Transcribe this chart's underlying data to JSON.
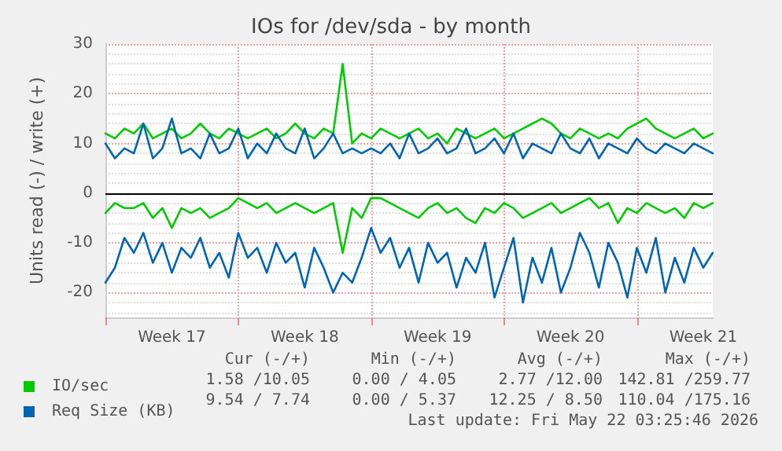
{
  "chart_data": {
    "type": "line",
    "title": "IOs for /dev/sda - by month",
    "ylabel": "Units read (-) / write (+)",
    "categories": [
      null,
      null,
      null,
      null,
      null,
      null,
      null,
      "Week 17",
      null,
      null,
      null,
      null,
      null,
      null,
      null,
      null,
      null,
      null,
      null,
      null,
      null,
      "Week 18",
      null,
      null,
      null,
      null,
      null,
      null,
      null,
      null,
      null,
      null,
      null,
      null,
      null,
      "Week 19",
      null,
      null,
      null,
      null,
      null,
      null,
      null,
      null,
      null,
      null,
      null,
      null,
      null,
      "Week 20",
      null,
      null,
      null,
      null,
      null,
      null,
      null,
      null,
      null,
      null,
      null,
      null,
      null,
      "Week 21",
      null
    ],
    "series": [
      {
        "name": "IO/sec",
        "color": "#00cc00",
        "values": [
          12,
          11,
          13,
          12,
          14,
          11,
          12,
          13,
          11,
          12,
          14,
          12,
          11,
          13,
          12,
          11,
          12,
          13,
          11,
          12,
          14,
          12,
          11,
          13,
          12,
          26,
          10,
          12,
          11,
          13,
          12,
          11,
          12,
          13,
          11,
          12,
          10,
          13,
          12,
          11,
          12,
          13,
          11,
          12,
          13,
          14,
          15,
          14,
          12,
          11,
          13,
          12,
          11,
          12,
          11,
          13,
          14,
          15,
          13,
          12,
          11,
          12,
          13,
          11,
          12
        ]
      },
      {
        "color": "#00cc00",
        "values": [
          -4,
          -2,
          -3,
          -3,
          -2,
          -5,
          -3,
          -7,
          -3,
          -4,
          -3,
          -5,
          -4,
          -3,
          -1,
          -2,
          -3,
          -2,
          -4,
          -3,
          -2,
          -3,
          -4,
          -3,
          -2,
          -12,
          -3,
          -5,
          -1,
          -1,
          -2,
          -3,
          -4,
          -5,
          -3,
          -2,
          -4,
          -3,
          -5,
          -6,
          -3,
          -4,
          -2,
          -3,
          -5,
          -4,
          -3,
          -2,
          -4,
          -3,
          -2,
          -1,
          -3,
          -2,
          -6,
          -3,
          -4,
          -2,
          -3,
          -4,
          -3,
          -5,
          -2,
          -3,
          -2
        ]
      },
      {
        "name": "Req Size (KB)",
        "color": "#0066b3",
        "values": [
          10,
          7,
          9,
          8,
          14,
          7,
          9,
          15,
          8,
          9,
          7,
          12,
          8,
          9,
          13,
          7,
          10,
          8,
          12,
          9,
          8,
          13,
          7,
          9,
          12,
          8,
          9,
          8,
          9,
          8,
          10,
          7,
          12,
          8,
          9,
          11,
          8,
          9,
          13,
          8,
          9,
          11,
          8,
          12,
          7,
          10,
          9,
          8,
          12,
          9,
          8,
          11,
          7,
          10,
          9,
          8,
          11,
          9,
          8,
          10,
          9,
          8,
          10,
          9,
          8
        ]
      },
      {
        "color": "#0066b3",
        "values": [
          -18,
          -15,
          -9,
          -12,
          -8,
          -14,
          -10,
          -16,
          -11,
          -13,
          -9,
          -15,
          -12,
          -17,
          -8,
          -13,
          -11,
          -16,
          -10,
          -14,
          -12,
          -19,
          -11,
          -15,
          -20,
          -16,
          -18,
          -13,
          -7,
          -12,
          -9,
          -15,
          -11,
          -18,
          -10,
          -14,
          -12,
          -19,
          -13,
          -16,
          -10,
          -21,
          -15,
          -9,
          -22,
          -13,
          -18,
          -11,
          -20,
          -15,
          -8,
          -12,
          -19,
          -10,
          -14,
          -21,
          -11,
          -16,
          -9,
          -20,
          -13,
          -18,
          -11,
          -15,
          -12
        ]
      }
    ],
    "ylim": [
      -25,
      30
    ],
    "yticks": [
      -20,
      -10,
      0,
      10,
      20,
      30
    ],
    "ref_lines": [
      {
        "axis": "y",
        "value": 0,
        "color": "#000000"
      }
    ],
    "grid": true,
    "legend": "bottom left",
    "marker": "none",
    "line_style": "solid",
    "annotations": [
      "Cur (-/+)",
      "Min (-/+)",
      "Avg (-/+)",
      "Max (-/+)",
      "1.58 /10.05",
      "0.00 / 4.05",
      "2.77 /12.00",
      "142.81 /259.77",
      "9.54 / 7.74",
      "0.00 / 5.37",
      "12.25 / 8.50",
      "110.04 /175.16",
      "Last update: Fri May 22 03:25:46 2026"
    ]
  }
}
